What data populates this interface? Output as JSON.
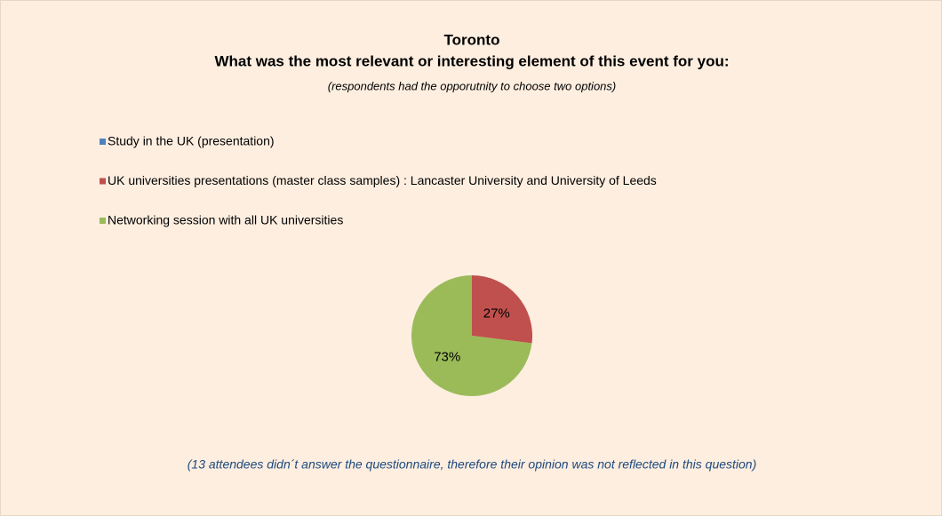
{
  "chart_data": {
    "type": "pie",
    "title": "Toronto",
    "subtitle": "What was the most relevant or interesting element of this event for you:",
    "note": "(respondents had the opporutnity to choose two options)",
    "categories": [
      "Study in the UK (presentation)",
      "UK universities presentations (master class samples) : Lancaster University and University of Leeds",
      "Networking session with all UK universities"
    ],
    "values": [
      0,
      27,
      73
    ],
    "value_labels": [
      null,
      "27%",
      "73%"
    ],
    "colors": [
      "#4f81bd",
      "#c0504d",
      "#9bbb59"
    ],
    "footnote": "(13 attendees didn´t answer the questionnaire, therefore their opinion was not reflected in this question)"
  }
}
